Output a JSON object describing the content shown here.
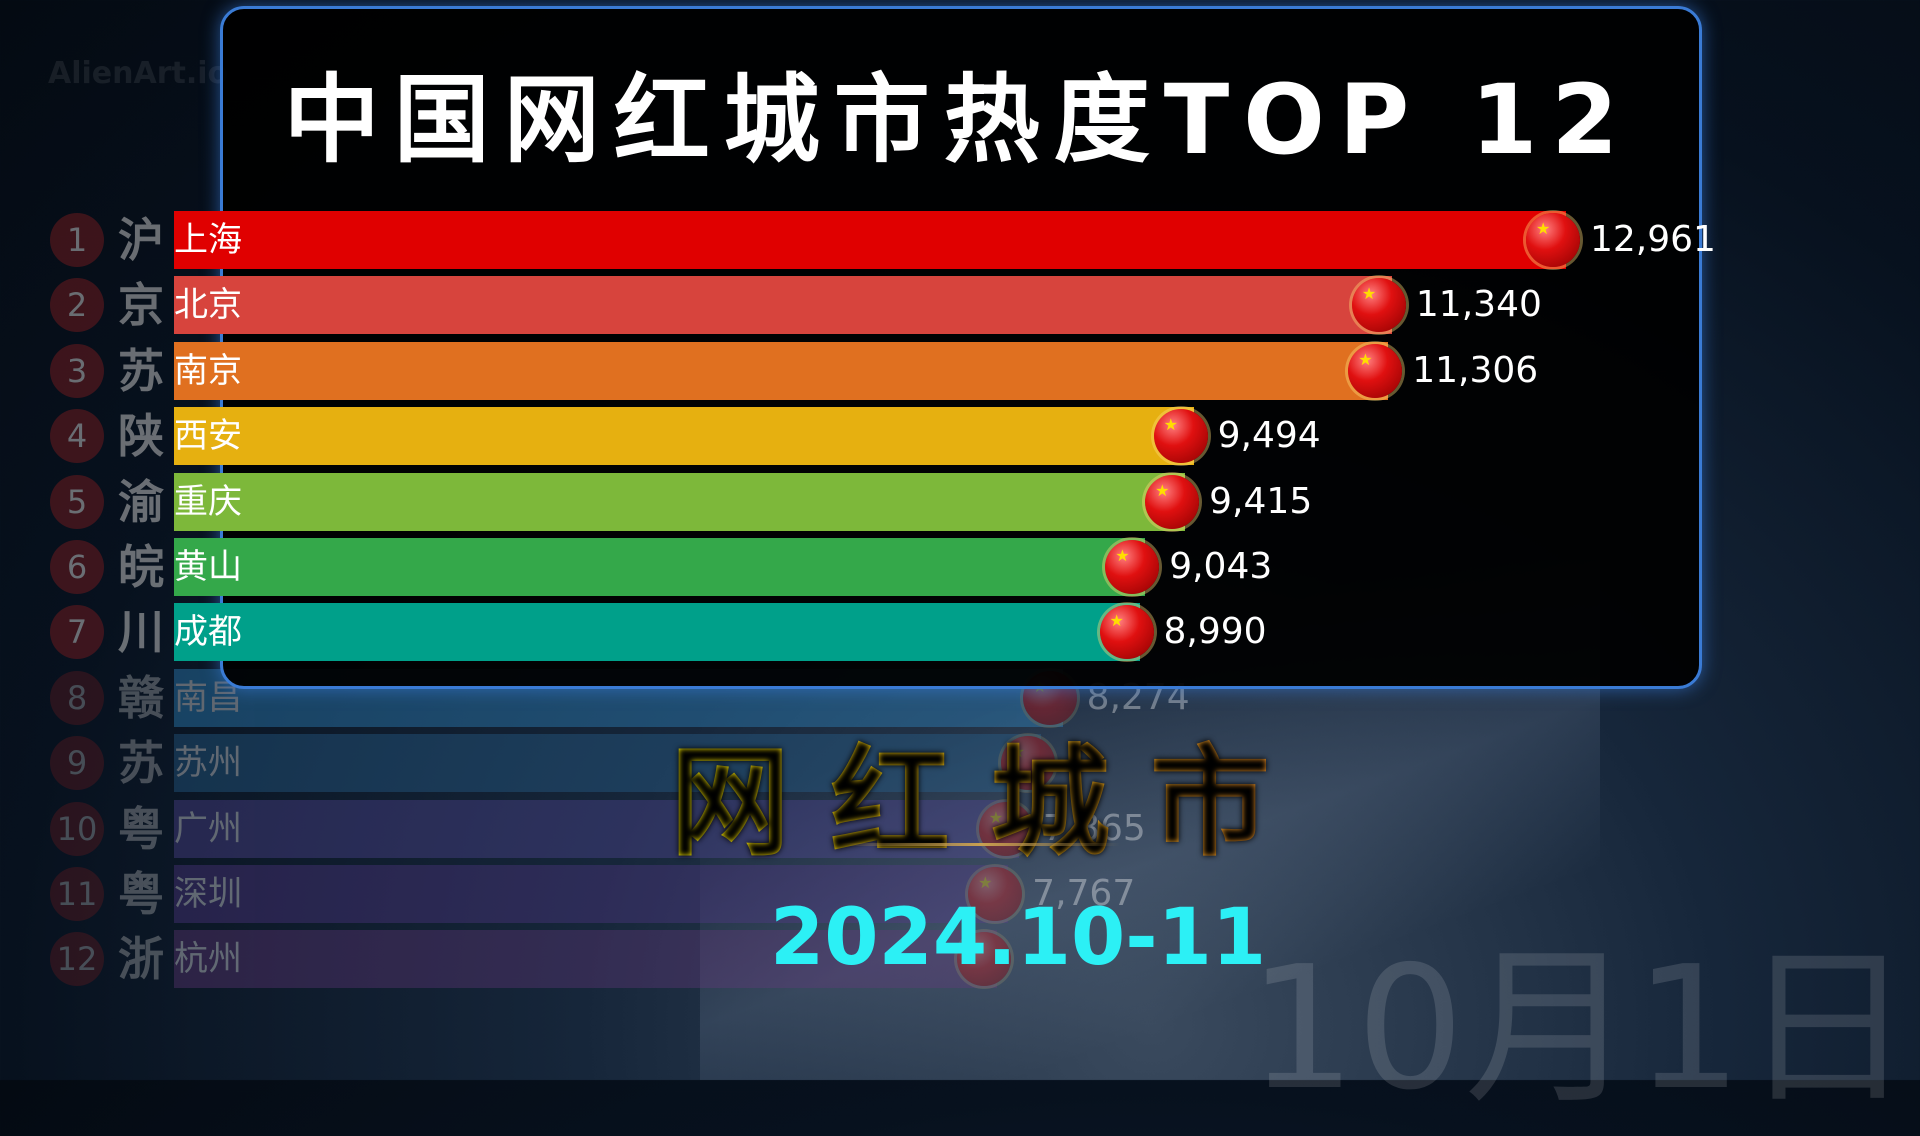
{
  "watermark": "AlienArt.io",
  "chart_data": {
    "type": "bar",
    "orientation": "horizontal",
    "title": "中国网红城市热度TOP 12",
    "date_label": "10月1日",
    "rows": [
      {
        "rank": "1",
        "abbr": "沪",
        "name": "上海",
        "value": 12961,
        "label": "12,961",
        "color": "#e00000"
      },
      {
        "rank": "2",
        "abbr": "京",
        "name": "北京",
        "value": 11340,
        "label": "11,340",
        "color": "#d7443d"
      },
      {
        "rank": "3",
        "abbr": "苏",
        "name": "南京",
        "value": 11306,
        "label": "11,306",
        "color": "#e07020"
      },
      {
        "rank": "4",
        "abbr": "陕",
        "name": "西安",
        "value": 9494,
        "label": "9,494",
        "color": "#e6b010"
      },
      {
        "rank": "5",
        "abbr": "渝",
        "name": "重庆",
        "value": 9415,
        "label": "9,415",
        "color": "#7db83a"
      },
      {
        "rank": "6",
        "abbr": "皖",
        "name": "黄山",
        "value": 9043,
        "label": "9,043",
        "color": "#34a84a"
      },
      {
        "rank": "7",
        "abbr": "川",
        "name": "成都",
        "value": 8990,
        "label": "8,990",
        "color": "#00a08a"
      },
      {
        "rank": "8",
        "abbr": "赣",
        "name": "南昌",
        "value": 8274,
        "label": "8,274",
        "color": "#3498db"
      },
      {
        "rank": "9",
        "abbr": "苏",
        "name": "苏州",
        "value": null,
        "label": "",
        "color": "#2a6a9a"
      },
      {
        "rank": "10",
        "abbr": "粤",
        "name": "广州",
        "value": 7865,
        "label": "7,865",
        "color": "#5a4aa0"
      },
      {
        "rank": "11",
        "abbr": "粤",
        "name": "深圳",
        "value": 7767,
        "label": "7,767",
        "color": "#5a3a90"
      },
      {
        "rank": "12",
        "abbr": "浙",
        "name": "杭州",
        "value": null,
        "label": "",
        "color": "#6a3a80"
      }
    ]
  },
  "overlay": {
    "headline": "网红城市",
    "period": "2024.10-11"
  }
}
